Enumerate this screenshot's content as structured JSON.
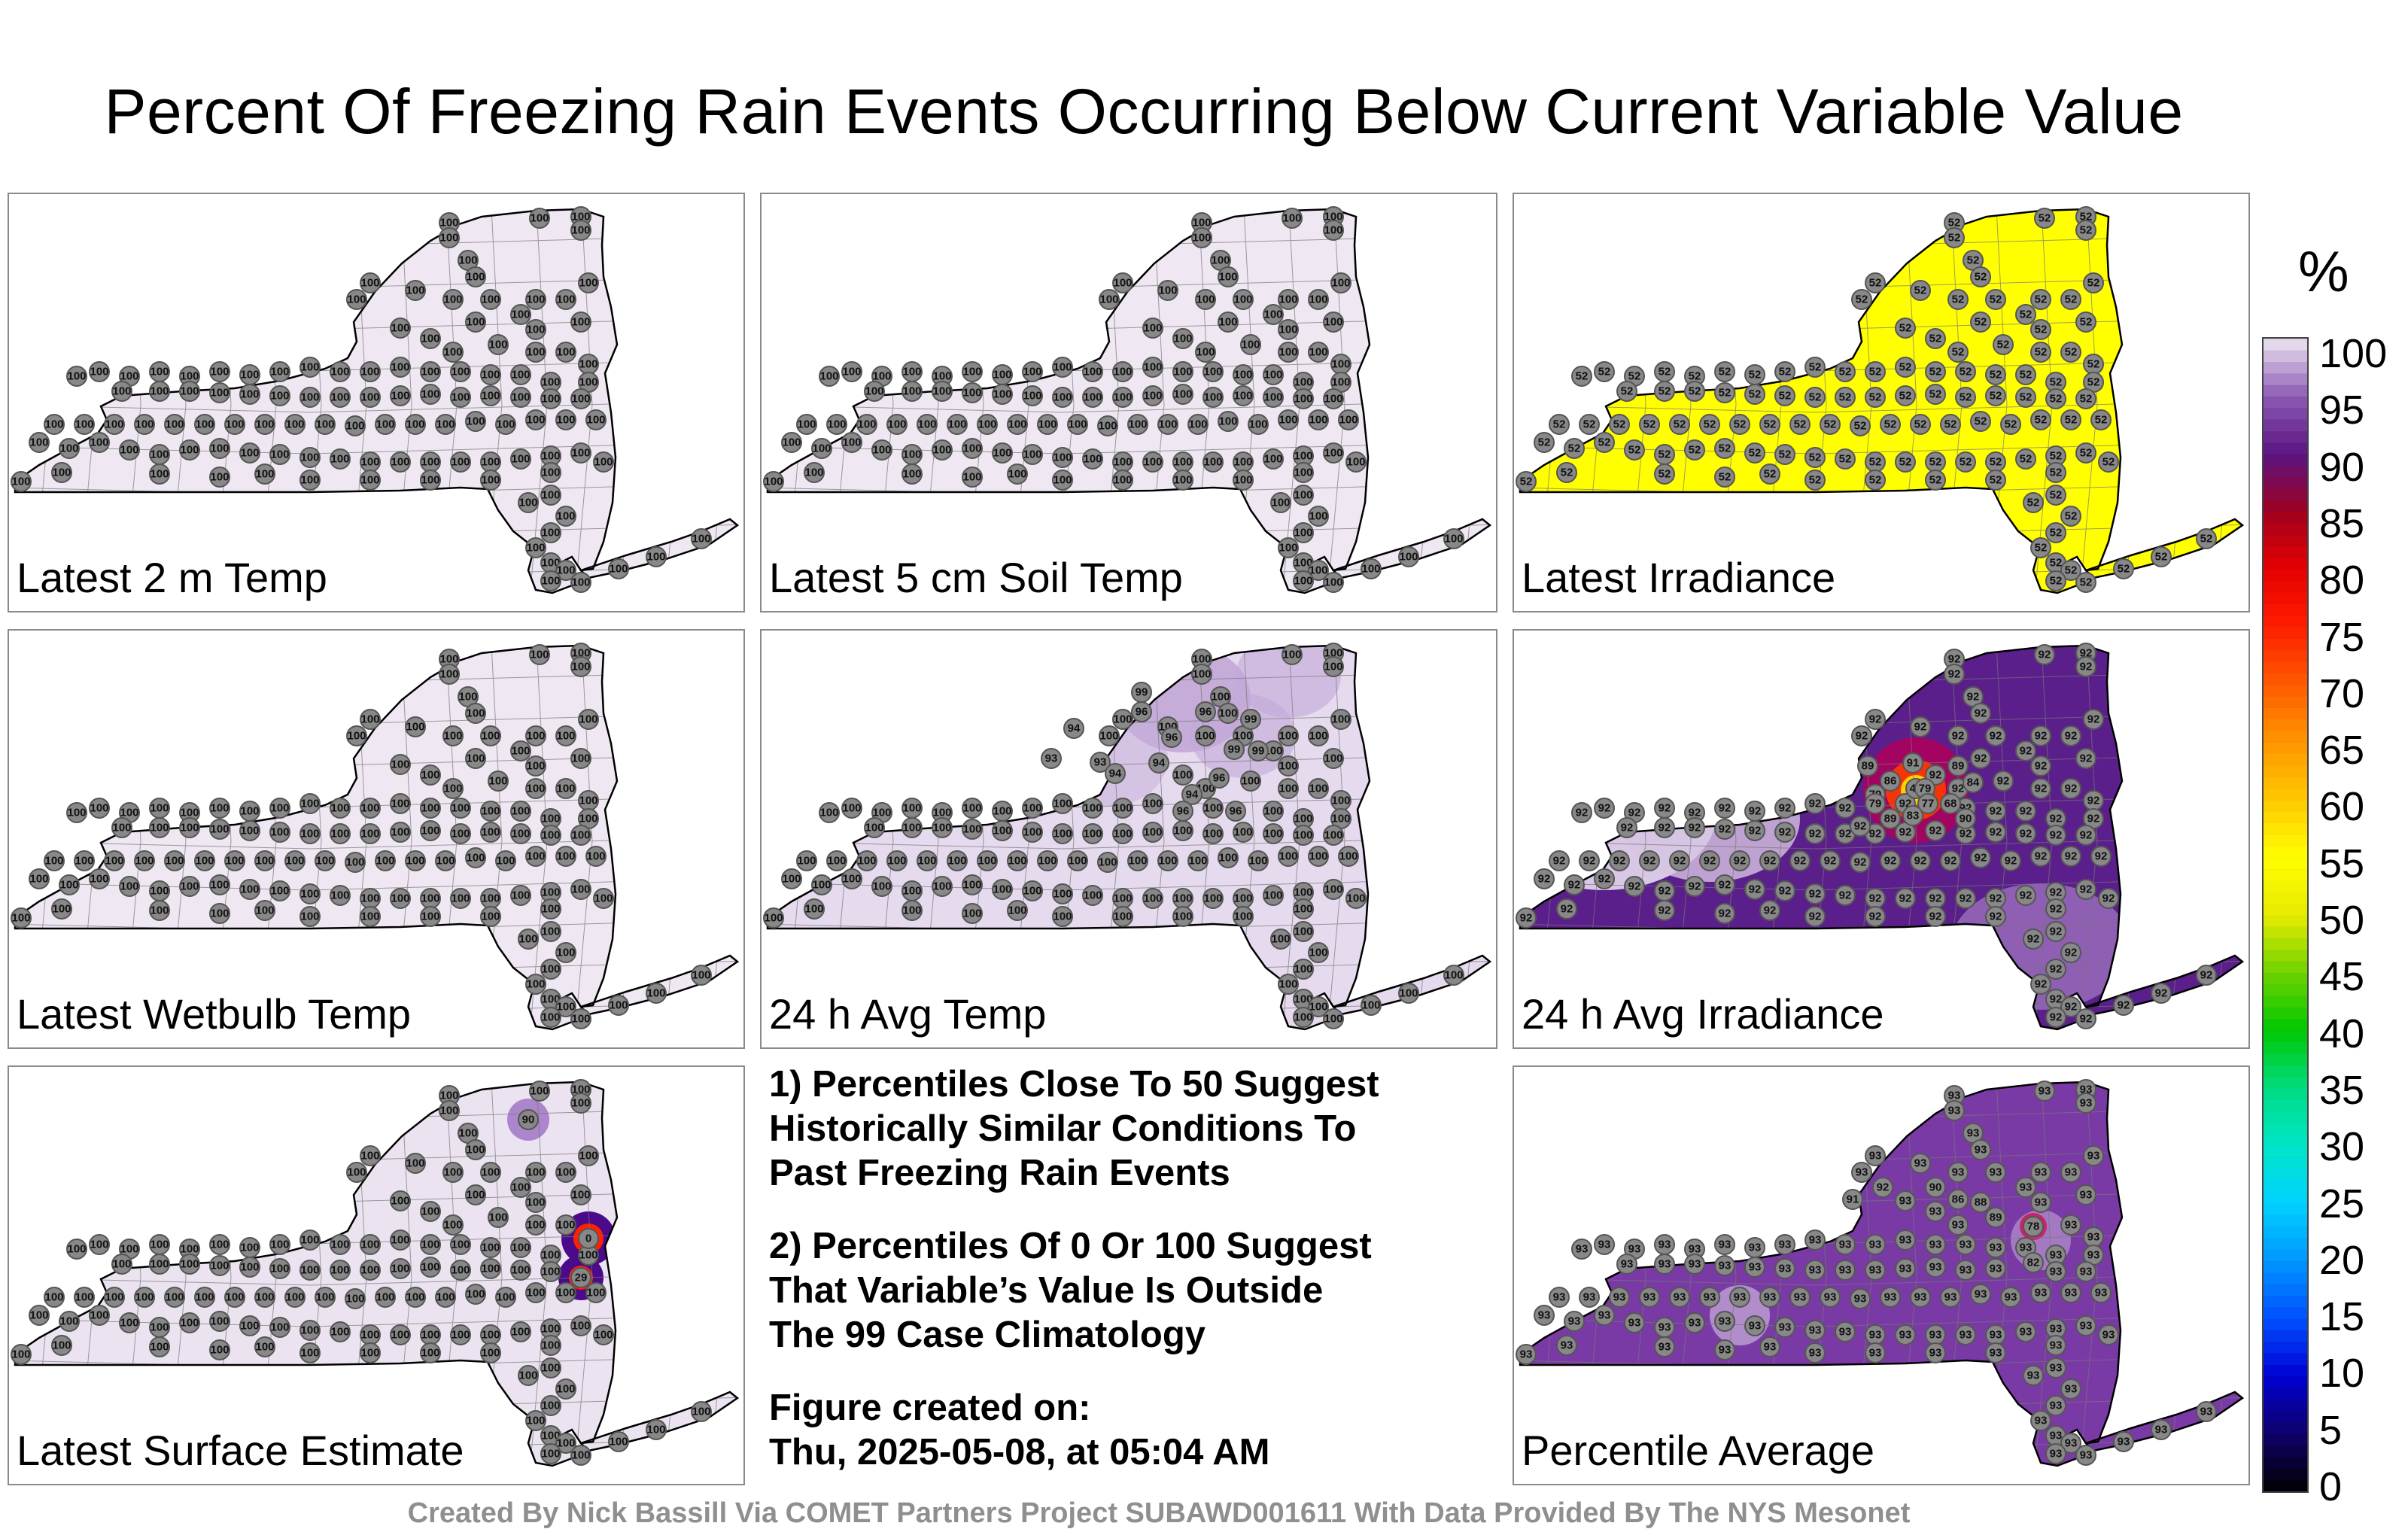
{
  "title": "Percent Of Freezing Rain Events Occurring Below Current Variable Value",
  "colorbar": {
    "unit": "%",
    "ticks": [
      "100",
      "95",
      "90",
      "85",
      "80",
      "75",
      "70",
      "65",
      "60",
      "55",
      "50",
      "45",
      "40",
      "35",
      "30",
      "25",
      "20",
      "15",
      "10",
      "5",
      "0"
    ],
    "colors": {
      "0": "#000000",
      "5": "#10006a",
      "10": "#0000d4",
      "15": "#0050ff",
      "20": "#0096ff",
      "25": "#00d2ff",
      "30": "#00e6c8",
      "35": "#00dc82",
      "40": "#00c800",
      "45": "#6ed200",
      "50": "#e6eb00",
      "55": "#ffff00",
      "60": "#ffc800",
      "65": "#ff9600",
      "70": "#ff5a00",
      "75": "#ff1e00",
      "80": "#e60000",
      "85": "#a0001e",
      "90": "#5a1482",
      "95": "#8c5ab4",
      "100": "#eee6f2"
    }
  },
  "panels": [
    {
      "id": "2m-temp",
      "label": "Latest 2 m Temp",
      "fill": "#efe7f2",
      "uniform_value": "100"
    },
    {
      "id": "5cm-soil",
      "label": "Latest 5 cm Soil Temp",
      "fill": "#efe7f2",
      "uniform_value": "100"
    },
    {
      "id": "irradiance",
      "label": "Latest Irradiance",
      "fill": "#ffff00",
      "uniform_value": "52"
    },
    {
      "id": "wetbulb",
      "label": "Latest Wetbulb Temp",
      "fill": "#efe7f2",
      "uniform_value": "100"
    },
    {
      "id": "avg-temp",
      "label": "24 h Avg Temp",
      "fill": "#e6daee",
      "uniform_value": "100",
      "highlight_values": [
        "99",
        "96",
        "96",
        "99",
        "94",
        "96",
        "93",
        "93",
        "94",
        "94",
        "96",
        "99",
        "99",
        "94",
        "96",
        "96"
      ]
    },
    {
      "id": "avg-irradiance",
      "label": "24 h Avg Irradiance",
      "fill": "#6a2a9a",
      "uniform_value": "92",
      "highlight_values": [
        "49",
        "79",
        "79",
        "77",
        "68",
        "83",
        "84",
        "86",
        "89",
        "91",
        "89",
        "89",
        "79",
        "90",
        "92"
      ]
    },
    {
      "id": "surface-estimate",
      "label": "Latest Surface Estimate",
      "fill": "#ece3f1",
      "uniform_value": "100",
      "highlight_values": [
        "90",
        "0",
        "29"
      ]
    },
    {
      "id": "percentile-average",
      "label": "Percentile Average",
      "fill": "#7a3aa6",
      "uniform_value": "93",
      "highlight_values": [
        "92",
        "91",
        "90",
        "86",
        "78",
        "82",
        "88",
        "89"
      ]
    }
  ],
  "notes": {
    "note1": "1) Percentiles Close To 50 Suggest\nHistorically Similar Conditions To\nPast Freezing Rain Events",
    "note2": "2) Percentiles Of 0 Or 100 Suggest\nThat Variable’s Value Is Outside\nThe 99 Case Climatology",
    "note3": "Figure created on:\nThu, 2025-05-08, at 05:04 AM"
  },
  "footer": "Created By Nick Bassill Via COMET Partners Project SUBAWD001611 With Data Provided By The NYS Mesonet"
}
